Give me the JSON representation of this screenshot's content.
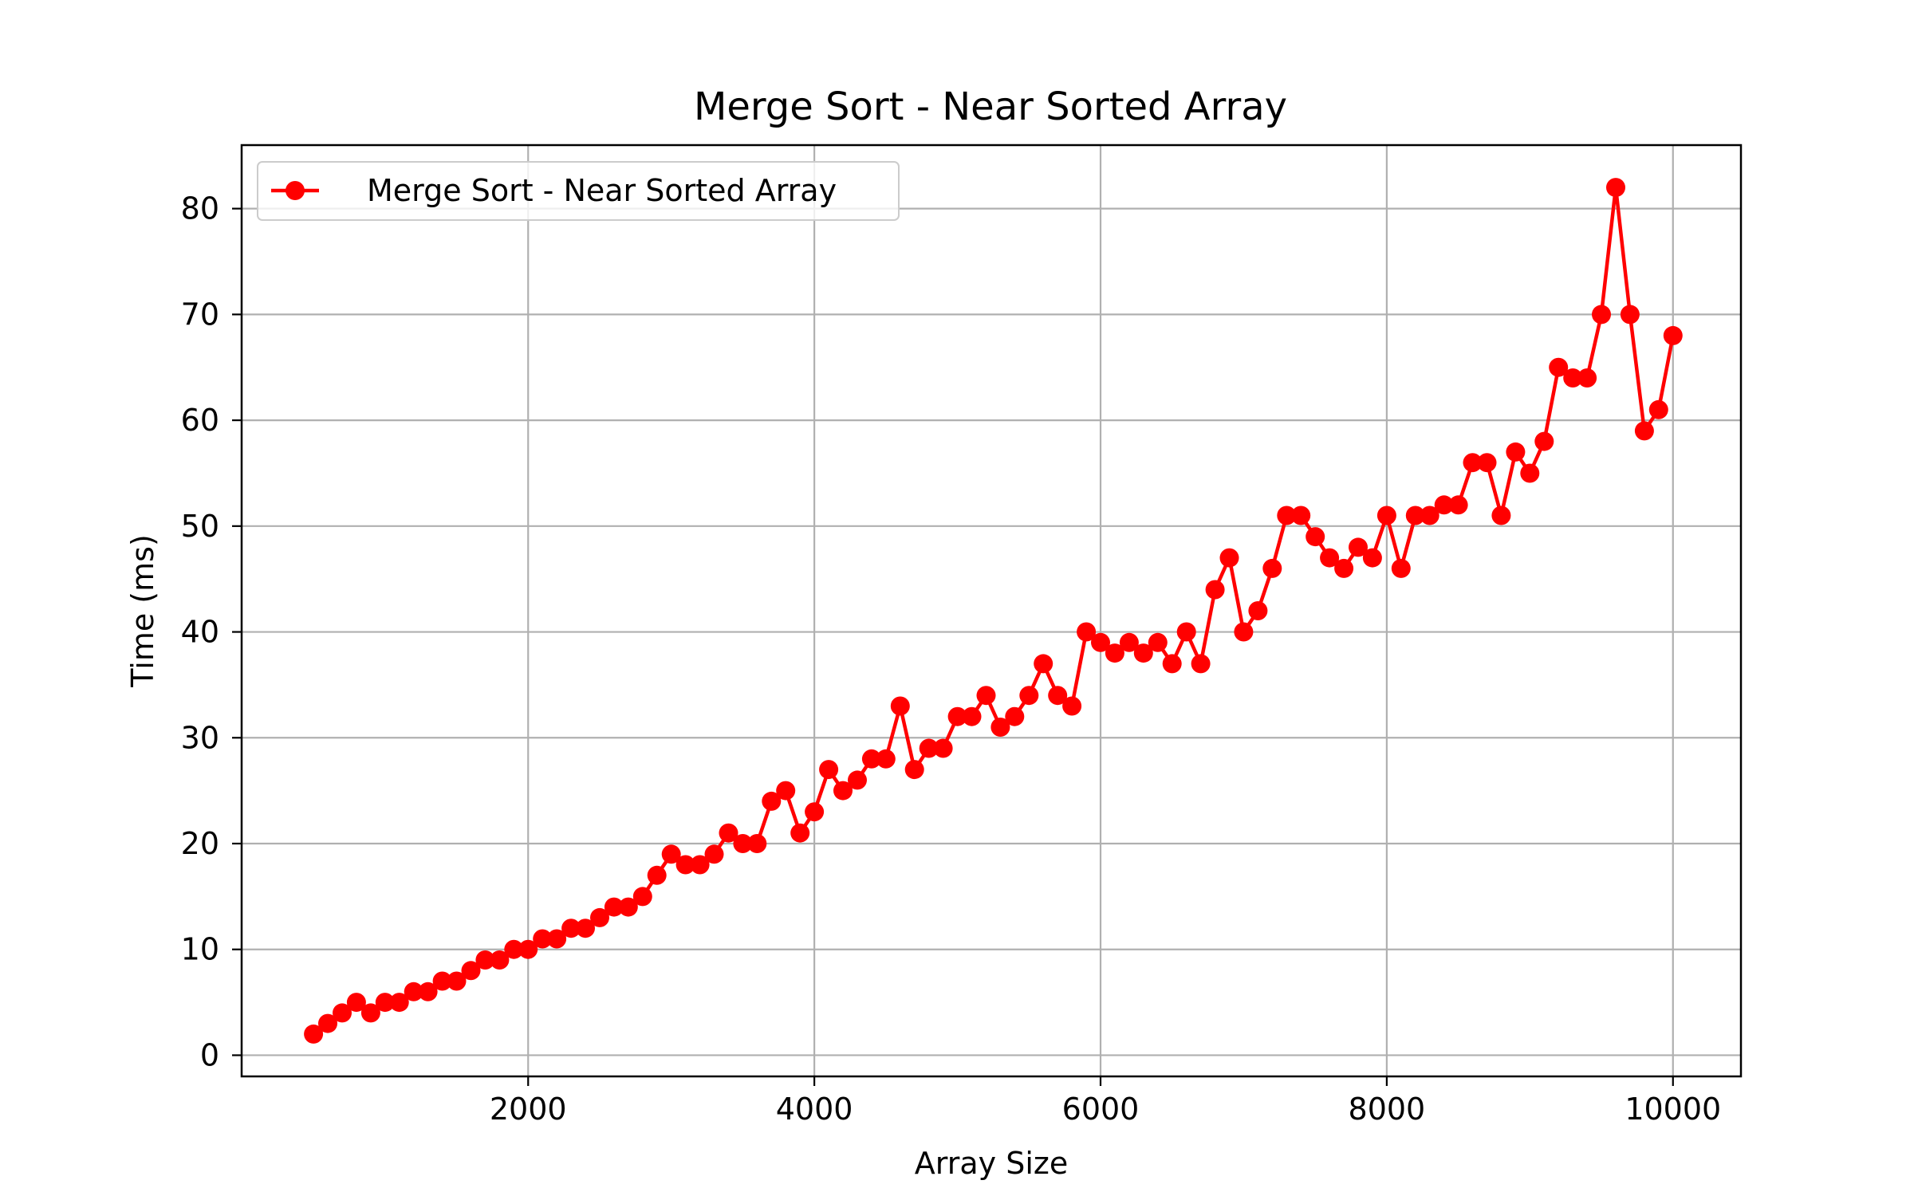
{
  "chart_data": {
    "type": "line",
    "title": "Merge Sort - Near Sorted Array",
    "xlabel": "Array Size",
    "ylabel": "Time (ms)",
    "xlim": [
      -2,
      10475
    ],
    "ylim": [
      -2,
      86
    ],
    "xticks": [
      2000,
      4000,
      6000,
      8000,
      10000
    ],
    "yticks": [
      0,
      10,
      20,
      30,
      40,
      50,
      60,
      70,
      80
    ],
    "xtick_labels": [
      "2000",
      "4000",
      "6000",
      "8000",
      "10000"
    ],
    "ytick_labels": [
      "0",
      "10",
      "20",
      "30",
      "40",
      "50",
      "60",
      "70",
      "80"
    ],
    "grid": true,
    "legend": {
      "placement": "top-left",
      "entries": [
        "Merge Sort - Near Sorted Array"
      ]
    },
    "colors": {
      "series": "#ff0000",
      "grid": "#b0b0b0",
      "axes": "#000000",
      "legend_border": "#cccccc"
    },
    "series": [
      {
        "name": "Merge Sort - Near Sorted Array",
        "marker": "circle",
        "x": [
          500,
          600,
          700,
          800,
          900,
          1000,
          1100,
          1200,
          1300,
          1400,
          1500,
          1600,
          1700,
          1800,
          1900,
          2000,
          2100,
          2200,
          2300,
          2400,
          2500,
          2600,
          2700,
          2800,
          2900,
          3000,
          3100,
          3200,
          3300,
          3400,
          3500,
          3600,
          3700,
          3800,
          3900,
          4000,
          4100,
          4200,
          4300,
          4400,
          4500,
          4600,
          4700,
          4800,
          4900,
          5000,
          5100,
          5200,
          5300,
          5400,
          5500,
          5600,
          5700,
          5800,
          5900,
          6000,
          6100,
          6200,
          6300,
          6400,
          6500,
          6600,
          6700,
          6800,
          6900,
          7000,
          7100,
          7200,
          7300,
          7400,
          7500,
          7600,
          7700,
          7800,
          7900,
          8000,
          8100,
          8200,
          8300,
          8400,
          8500,
          8600,
          8700,
          8800,
          8900,
          9000,
          9100,
          9200,
          9300,
          9400,
          9500,
          9600,
          9700,
          9800,
          9900,
          10000
        ],
        "y": [
          2,
          3,
          4,
          5,
          4,
          5,
          5,
          6,
          6,
          7,
          7,
          8,
          9,
          9,
          10,
          10,
          11,
          11,
          12,
          12,
          13,
          14,
          14,
          15,
          17,
          19,
          18,
          18,
          19,
          21,
          20,
          20,
          24,
          25,
          21,
          23,
          27,
          25,
          26,
          28,
          28,
          33,
          27,
          29,
          29,
          32,
          32,
          34,
          31,
          32,
          34,
          37,
          34,
          33,
          40,
          39,
          38,
          39,
          38,
          39,
          37,
          40,
          37,
          44,
          47,
          40,
          42,
          46,
          51,
          51,
          49,
          47,
          46,
          48,
          47,
          51,
          46,
          51,
          51,
          52,
          52,
          56,
          56,
          51,
          57,
          55,
          58,
          65,
          64,
          64,
          70,
          82,
          70,
          59,
          61,
          68
        ]
      }
    ]
  }
}
